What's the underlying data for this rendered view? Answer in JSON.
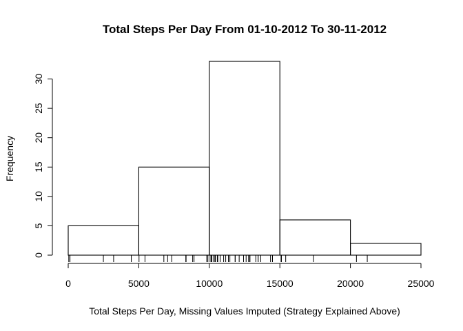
{
  "chart_data": {
    "type": "bar",
    "subtype": "histogram",
    "title": "Total Steps Per Day From 01-10-2012 To 30-11-2012",
    "xlabel": "Total Steps Per Day, Missing Values Imputed (Strategy Explained Above)",
    "ylabel": "Frequency",
    "bins": [
      {
        "from": 0,
        "to": 5000,
        "count": 5
      },
      {
        "from": 5000,
        "to": 10000,
        "count": 15
      },
      {
        "from": 10000,
        "to": 15000,
        "count": 33
      },
      {
        "from": 15000,
        "to": 20000,
        "count": 6
      },
      {
        "from": 20000,
        "to": 25000,
        "count": 2
      }
    ],
    "xlim": [
      0,
      25000
    ],
    "ylim": [
      0,
      33
    ],
    "x_ticks": [
      0,
      5000,
      10000,
      15000,
      20000,
      25000
    ],
    "y_ticks": [
      0,
      5,
      10,
      15,
      20,
      25,
      30
    ],
    "rug": [
      41,
      126,
      2492,
      3219,
      4472,
      5018,
      5441,
      6778,
      7047,
      7336,
      8334,
      8355,
      8821,
      8918,
      9819,
      9900,
      10056,
      10139,
      10183,
      10304,
      10395,
      10439,
      10571,
      10600,
      10765,
      10766,
      11015,
      11162,
      11352,
      11458,
      11829,
      11834,
      12116,
      12426,
      12608,
      12787,
      12811,
      12883,
      13294,
      13452,
      13460,
      13646,
      14339,
      14478,
      15084,
      15098,
      15110,
      15414,
      17382,
      20427,
      21194
    ],
    "grid": false,
    "legend": "none"
  }
}
